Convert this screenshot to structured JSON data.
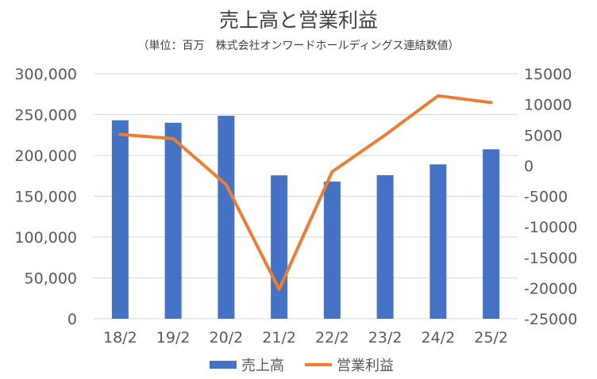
{
  "chart_data": {
    "type": "bar",
    "title": "売上高と営業利益",
    "subtitle": "（単位：百万　株式会社オンワードホールディングス連結数値）",
    "categories": [
      "18/2",
      "19/2",
      "20/2",
      "21/2",
      "22/2",
      "23/2",
      "24/2",
      "25/2"
    ],
    "series": [
      {
        "name": "売上高",
        "type": "bar",
        "axis": "left",
        "color": "#4472c4",
        "values": [
          243000,
          240000,
          248500,
          175600,
          168000,
          175800,
          189000,
          207500
        ]
      },
      {
        "name": "営業利益",
        "type": "line",
        "axis": "right",
        "color": "#ed7d31",
        "values": [
          5100,
          4400,
          -3100,
          -20200,
          -1000,
          5000,
          11400,
          10300
        ]
      }
    ],
    "y_left": {
      "ylim": [
        0,
        300000
      ],
      "ticks": [
        0,
        50000,
        100000,
        150000,
        200000,
        250000,
        300000
      ],
      "tick_labels": [
        "0",
        "50,000",
        "100,000",
        "150,000",
        "200,000",
        "250,000",
        "300,000"
      ]
    },
    "y_right": {
      "ylim": [
        -25000,
        15000
      ],
      "ticks": [
        -25000,
        -20000,
        -15000,
        -10000,
        -5000,
        0,
        5000,
        10000,
        15000
      ],
      "tick_labels": [
        "-25000",
        "-20000",
        "-15000",
        "-10000",
        "-5000",
        "0",
        "5000",
        "10000",
        "15000"
      ]
    },
    "grid": true,
    "legend_position": "bottom"
  }
}
